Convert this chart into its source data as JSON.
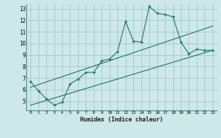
{
  "xlabel": "Humidex (Indice chaleur)",
  "bg_color": "#cce8e8",
  "grid_color": "#aac8c8",
  "line_color": "#1a6b6b",
  "xlim": [
    -0.5,
    23.5
  ],
  "ylim": [
    4.2,
    13.4
  ],
  "xticks": [
    0,
    1,
    2,
    3,
    4,
    5,
    6,
    7,
    8,
    9,
    10,
    11,
    12,
    13,
    14,
    15,
    16,
    17,
    18,
    19,
    20,
    21,
    22,
    23
  ],
  "yticks": [
    5,
    6,
    7,
    8,
    9,
    10,
    11,
    12,
    13
  ],
  "curve1_x": [
    0,
    1,
    2,
    3,
    4,
    5,
    6,
    7,
    8,
    9,
    10,
    11,
    12,
    13,
    14,
    15,
    16,
    17,
    18,
    19,
    20,
    21,
    22,
    23
  ],
  "curve1_y": [
    6.7,
    5.9,
    5.2,
    4.65,
    4.9,
    6.5,
    6.9,
    7.5,
    7.5,
    8.5,
    8.65,
    9.3,
    11.9,
    10.2,
    10.1,
    13.2,
    12.6,
    12.5,
    12.3,
    10.1,
    9.1,
    9.5,
    9.4,
    9.4
  ],
  "line2_x": [
    0,
    23
  ],
  "line2_y": [
    6.2,
    11.5
  ],
  "line3_x": [
    0,
    23
  ],
  "line3_y": [
    4.65,
    9.4
  ]
}
